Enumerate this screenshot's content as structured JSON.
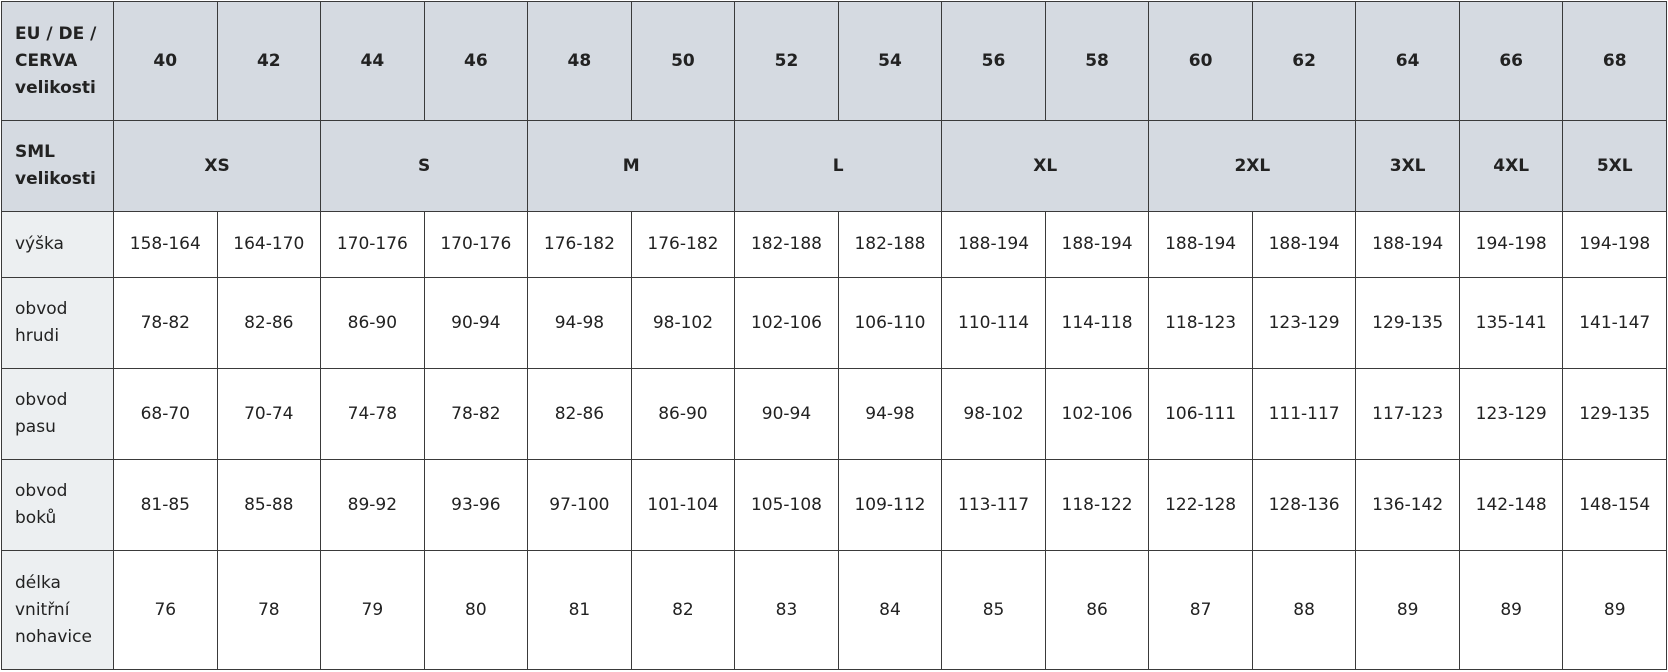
{
  "table": {
    "size_label": "EU / DE / CERVA velikosti",
    "sizes": [
      40,
      42,
      44,
      46,
      48,
      50,
      52,
      54,
      56,
      58,
      60,
      62,
      64,
      66,
      68
    ],
    "sml_label": "SML velikosti",
    "sml": [
      "XS",
      "S",
      "M",
      "L",
      "XL",
      "2XL",
      "3XL",
      "4XL",
      "5XL"
    ],
    "rows": [
      {
        "label": "výška",
        "values": [
          "158-164",
          "164-170",
          "170-176",
          "170-176",
          "176-182",
          "176-182",
          "182-188",
          "182-188",
          "188-194",
          "188-194",
          "188-194",
          "188-194",
          "188-194",
          "194-198",
          "194-198"
        ]
      },
      {
        "label": "obvod hrudi",
        "values": [
          "78-82",
          "82-86",
          "86-90",
          "90-94",
          "94-98",
          "98-102",
          "102-106",
          "106-110",
          "110-114",
          "114-118",
          "118-123",
          "123-129",
          "129-135",
          "135-141",
          "141-147"
        ]
      },
      {
        "label": "obvod pasu",
        "values": [
          "68-70",
          "70-74",
          "74-78",
          "78-82",
          "82-86",
          "86-90",
          "90-94",
          "94-98",
          "98-102",
          "102-106",
          "106-111",
          "111-117",
          "117-123",
          "123-129",
          "129-135"
        ]
      },
      {
        "label": "obvod boků",
        "values": [
          "81-85",
          "85-88",
          "89-92",
          "93-96",
          "97-100",
          "101-104",
          "105-108",
          "109-112",
          "113-117",
          "118-122",
          "122-128",
          "128-136",
          "136-142",
          "142-148",
          "148-154"
        ]
      },
      {
        "label": "délka vnitřní nohavice",
        "values": [
          76,
          78,
          79,
          80,
          81,
          82,
          83,
          84,
          85,
          86,
          87,
          88,
          89,
          89,
          89
        ]
      }
    ]
  }
}
